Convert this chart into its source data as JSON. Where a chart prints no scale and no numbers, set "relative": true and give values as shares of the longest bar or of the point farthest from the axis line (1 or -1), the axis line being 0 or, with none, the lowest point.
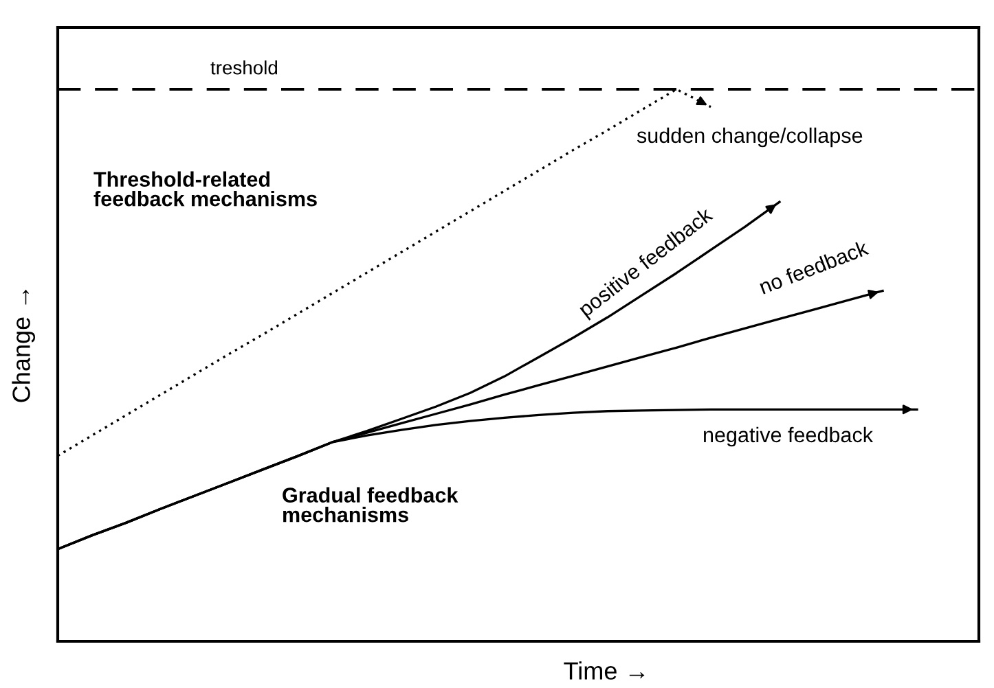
{
  "chart_data": {
    "type": "line",
    "relative": true,
    "xlabel": "Time →",
    "ylabel": "Change →",
    "tick_labels": false,
    "marker": "none",
    "categories": [
      null,
      null,
      null,
      null,
      null,
      null,
      null,
      null,
      null,
      null,
      null,
      null,
      null,
      null,
      null,
      null,
      null,
      null,
      null,
      null,
      null,
      null,
      null,
      null,
      null,
      null,
      null
    ],
    "series": [
      {
        "color": "#000000",
        "line_style": "dotted",
        "values": [
          0.336,
          0.373,
          0.41,
          0.447,
          0.484,
          0.521,
          0.557,
          0.594,
          0.631,
          0.668,
          0.705,
          0.742,
          0.779,
          0.816,
          0.853,
          0.89,
          0.926,
          0.963,
          1.0,
          0.968,
          null,
          null,
          null,
          null,
          null,
          null,
          null
        ]
      },
      {
        "name": "positive feedback",
        "color": "#000000",
        "line_style": "solid",
        "values": [
          0.167,
          0.192,
          0.215,
          0.24,
          0.264,
          0.288,
          0.312,
          0.336,
          0.361,
          0.381,
          0.403,
          0.425,
          0.45,
          0.48,
          0.515,
          0.55,
          0.587,
          0.627,
          0.667,
          0.709,
          0.751,
          0.796,
          null,
          null,
          null,
          null,
          null
        ]
      },
      {
        "name": "no feedback",
        "color": "#000000",
        "line_style": "solid",
        "values": [
          0.167,
          0.192,
          0.215,
          0.24,
          0.264,
          0.288,
          0.312,
          0.336,
          0.361,
          0.378,
          0.395,
          0.412,
          0.429,
          0.447,
          0.464,
          0.481,
          0.498,
          0.515,
          0.532,
          0.55,
          0.567,
          0.584,
          0.601,
          0.618,
          0.635,
          null,
          null
        ]
      },
      {
        "name": "negative feedback",
        "color": "#000000",
        "line_style": "solid",
        "values": [
          0.167,
          0.192,
          0.215,
          0.24,
          0.264,
          0.288,
          0.312,
          0.336,
          0.361,
          0.373,
          0.383,
          0.392,
          0.399,
          0.405,
          0.41,
          0.414,
          0.417,
          0.418,
          0.419,
          0.42,
          0.42,
          0.42,
          0.42,
          0.42,
          0.42,
          0.42,
          null
        ]
      }
    ],
    "ref_lines": [
      {
        "axis": "y",
        "value": 1.0,
        "label": "treshold",
        "color": "#000000",
        "line_style": "dashed"
      }
    ],
    "annotations": [
      "sudden change/collapse",
      "Threshold-related\nfeedback mechanisms",
      "Gradual feedback\nmechanisms"
    ]
  }
}
